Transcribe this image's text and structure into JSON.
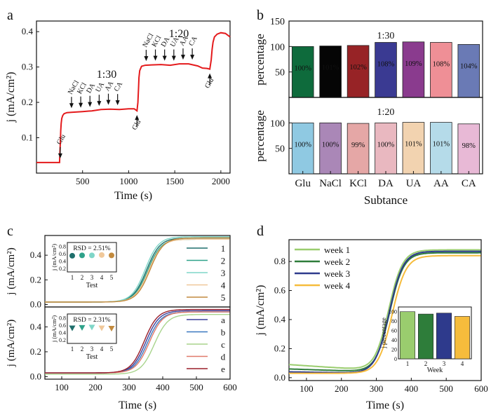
{
  "panels": {
    "a": {
      "label": "a",
      "chart_data": {
        "type": "line",
        "title": "",
        "xlabel": "Time (s)",
        "ylabel": "j (mA/cm²)",
        "xlim": [
          0,
          2100
        ],
        "ylim": [
          0,
          0.43
        ],
        "xticks": [
          500,
          1000,
          1500,
          2000
        ],
        "yticks": [
          0.1,
          0.2,
          0.3,
          0.4
        ],
        "color": "#e41a1c",
        "series": [
          {
            "name": "response",
            "x": [
              0,
              250,
              258,
              263,
              268,
              275,
              285,
              300,
              330,
              380,
              440,
              500,
              600,
              700,
              800,
              900,
              1000,
              1060,
              1090,
              1100,
              1107,
              1112,
              1120,
              1140,
              1180,
              1250,
              1350,
              1450,
              1550,
              1650,
              1750,
              1800,
              1850,
              1880,
              1895,
              1905,
              1915,
              1930,
              1960,
              2000,
              2050,
              2100
            ],
            "y": [
              0.03,
              0.03,
              0.08,
              0.12,
              0.14,
              0.155,
              0.163,
              0.168,
              0.171,
              0.172,
              0.173,
              0.174,
              0.176,
              0.18,
              0.181,
              0.18,
              0.182,
              0.182,
              0.176,
              0.2,
              0.24,
              0.27,
              0.29,
              0.302,
              0.305,
              0.306,
              0.307,
              0.305,
              0.309,
              0.309,
              0.303,
              0.297,
              0.296,
              0.294,
              0.32,
              0.35,
              0.37,
              0.385,
              0.393,
              0.397,
              0.395,
              0.385
            ]
          }
        ],
        "section_label_1": "1:30",
        "section_label_2": "1:20",
        "arrows_1": [
          {
            "label": "Glu",
            "x": 258,
            "y": 0.03
          },
          {
            "label": "NaCl",
            "x": 380,
            "y": 0.172
          },
          {
            "label": "KCl",
            "x": 480,
            "y": 0.173
          },
          {
            "label": "DA",
            "x": 580,
            "y": 0.175
          },
          {
            "label": "UA",
            "x": 680,
            "y": 0.178
          },
          {
            "label": "AA",
            "x": 780,
            "y": 0.181
          },
          {
            "label": "CA",
            "x": 880,
            "y": 0.18
          }
        ],
        "arrows_2": [
          {
            "label": "NaCl",
            "x": 1190,
            "y": 0.305
          },
          {
            "label": "KCl",
            "x": 1290,
            "y": 0.306
          },
          {
            "label": "DA",
            "x": 1390,
            "y": 0.306
          },
          {
            "label": "UA",
            "x": 1490,
            "y": 0.306
          },
          {
            "label": "AA",
            "x": 1590,
            "y": 0.309
          },
          {
            "label": "CA",
            "x": 1690,
            "y": 0.309
          }
        ],
        "up_arrows": [
          {
            "label": "Glu",
            "x": 1090,
            "y": 0.176
          },
          {
            "label": "Glu",
            "x": 1880,
            "y": 0.294
          }
        ]
      }
    },
    "b": {
      "label": "b",
      "chart_data": {
        "type": "bar",
        "xlabel": "Subtance",
        "ylabel_top": "percentage",
        "ylabel_bottom": "percentage",
        "categories": [
          "Glu",
          "NaCl",
          "KCl",
          "DA",
          "UA",
          "AA",
          "CA"
        ],
        "ylim": [
          0,
          150
        ],
        "yticks": [
          50,
          100,
          150
        ],
        "series": [
          {
            "name": "1:30",
            "values": [
              100,
              101,
              102,
              108,
              109,
              108,
              104
            ],
            "labels": [
              "100%",
              "101%",
              "102%",
              "108%",
              "109%",
              "108%",
              "104%"
            ],
            "colors": [
              "#0e6b3c",
              "#050505",
              "#972326",
              "#3a3a92",
              "#8a3b8e",
              "#ef8f96",
              "#6a7ab5"
            ]
          },
          {
            "name": "1:20",
            "values": [
              100,
              100,
              99,
              100,
              101,
              101,
              98
            ],
            "labels": [
              "100%",
              "100%",
              "99%",
              "100%",
              "101%",
              "101%",
              "98%"
            ],
            "colors": [
              "#8fc9e2",
              "#aa87b7",
              "#e5a7a6",
              "#e9b8c0",
              "#f2d3b0",
              "#b5dbe9",
              "#e8b9d6"
            ]
          }
        ]
      }
    },
    "c": {
      "label": "c",
      "chart_data": {
        "type": "line",
        "xlabel": "Time (s)",
        "ylabel_top": "j (mA/cm²)",
        "ylabel_bottom": "j (mA/cm²)",
        "xlim": [
          50,
          600
        ],
        "ylim": [
          -0.02,
          0.56
        ],
        "xticks": [
          100,
          200,
          300,
          400,
          500,
          600
        ],
        "yticks": [
          0.0,
          0.2,
          0.4
        ],
        "top": {
          "series": [
            {
              "name": "1",
              "color": "#1f6f6c",
              "t50": 352,
              "base": 0.02,
              "plateau": 0.54
            },
            {
              "name": "2",
              "color": "#2fa28a",
              "t50": 355,
              "base": 0.02,
              "plateau": 0.53
            },
            {
              "name": "3",
              "color": "#7fd6c8",
              "t50": 348,
              "base": 0.02,
              "plateau": 0.55
            },
            {
              "name": "4",
              "color": "#f0c89a",
              "t50": 358,
              "base": 0.02,
              "plateau": 0.53
            },
            {
              "name": "5",
              "color": "#c28a3e",
              "t50": 362,
              "base": 0.02,
              "plateau": 0.54
            }
          ],
          "inset": {
            "rsd": "RSD = 2.51%",
            "ylabel": "j (mA/cm²)",
            "xlabel": "Test",
            "xticks": [
              "1",
              "2",
              "3",
              "4",
              "5"
            ],
            "yticks": [
              "0.2",
              "0.4",
              "0.6",
              "0.8"
            ],
            "values": [
              0.54,
              0.55,
              0.55,
              0.56,
              0.55
            ],
            "colors": [
              "#1f6f6c",
              "#2fa28a",
              "#7fd6c8",
              "#f0c89a",
              "#c28a3e"
            ]
          }
        },
        "bottom": {
          "series": [
            {
              "name": "a",
              "color": "#3c3f9a",
              "t50": 350,
              "base": 0.03,
              "plateau": 0.53
            },
            {
              "name": "b",
              "color": "#3a78c0",
              "t50": 355,
              "base": 0.03,
              "plateau": 0.52
            },
            {
              "name": "c",
              "color": "#a8d48c",
              "t50": 375,
              "base": 0.02,
              "plateau": 0.5
            },
            {
              "name": "d",
              "color": "#e07a6a",
              "t50": 360,
              "base": 0.03,
              "plateau": 0.52
            },
            {
              "name": "e",
              "color": "#9a1e2a",
              "t50": 345,
              "base": 0.03,
              "plateau": 0.54
            }
          ],
          "inset": {
            "rsd": "RSD = 2.31%",
            "ylabel": "j (mA/cm²)",
            "xlabel": "Test",
            "xticks": [
              "1",
              "2",
              "3",
              "4",
              "5"
            ],
            "yticks": [
              "0.2",
              "0.4",
              "0.6",
              "0.8"
            ],
            "values": [
              0.52,
              0.53,
              0.54,
              0.52,
              0.51
            ],
            "colors": [
              "#1f6f6c",
              "#2fa28a",
              "#7fd6c8",
              "#f0c89a",
              "#c28a3e"
            ]
          }
        }
      }
    },
    "d": {
      "label": "d",
      "chart_data": {
        "type": "line",
        "xlabel": "Time (s)",
        "ylabel": "j (mA/cm²)",
        "xlim": [
          50,
          600
        ],
        "ylim": [
          -0.02,
          0.95
        ],
        "xticks": [
          100,
          200,
          300,
          400,
          500,
          600
        ],
        "yticks": [
          0.0,
          0.2,
          0.4,
          0.6,
          0.8
        ],
        "series": [
          {
            "name": "week 1",
            "color": "#9acd6e",
            "t50": 335,
            "base": 0.09,
            "baseEnd": 0.05,
            "plateau": 0.88
          },
          {
            "name": "week 2",
            "color": "#2e7d3a",
            "t50": 338,
            "base": 0.06,
            "baseEnd": 0.04,
            "plateau": 0.86
          },
          {
            "name": "week 3",
            "color": "#2e3a8c",
            "t50": 337,
            "base": 0.04,
            "baseEnd": 0.03,
            "plateau": 0.87
          },
          {
            "name": "week 4",
            "color": "#f6bc3c",
            "t50": 345,
            "base": 0.03,
            "baseEnd": 0.03,
            "plateau": 0.84
          }
        ],
        "inset": {
          "ylabel": "j percentage",
          "xlabel": "Week",
          "categories": [
            "1",
            "2",
            "3",
            "4"
          ],
          "values": [
            100,
            95,
            97,
            90
          ],
          "yticks": [
            "0",
            "20",
            "40",
            "60",
            "80",
            "100"
          ],
          "colors": [
            "#9acd6e",
            "#2e7d3a",
            "#2e3a8c",
            "#f6bc3c"
          ]
        }
      }
    }
  }
}
